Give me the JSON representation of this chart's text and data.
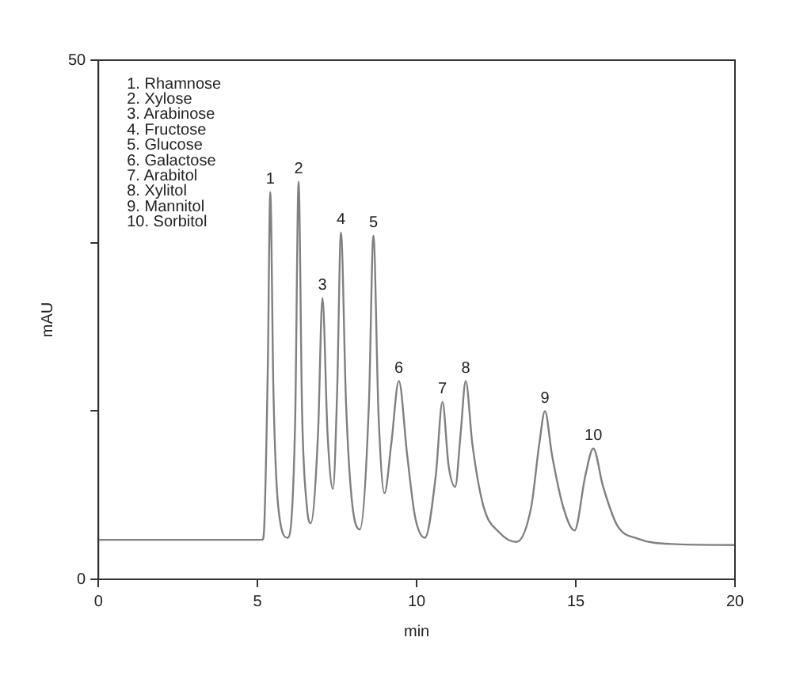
{
  "chart_data": {
    "type": "line",
    "xlabel": "min",
    "ylabel": "mAU",
    "xlim": [
      0,
      20
    ],
    "xticks": [
      0,
      5,
      10,
      15,
      20
    ],
    "ylim": [
      0,
      50
    ],
    "yticks": [
      0,
      {
        "value": 16.2,
        "label": null
      },
      {
        "value": 32.4,
        "label": null
      },
      50
    ],
    "grid": false,
    "legend": false,
    "marker": "none",
    "line_style": "solid",
    "series": [
      {
        "color": "#808080",
        "x": [
          0,
          5.15,
          5.2,
          5.32,
          5.4,
          5.5,
          5.65,
          5.95,
          6.18,
          6.29,
          6.4,
          6.55,
          6.67,
          6.9,
          7.04,
          7.2,
          7.37,
          7.5,
          7.62,
          7.78,
          7.95,
          8.21,
          8.5,
          8.64,
          8.8,
          8.99,
          9.2,
          9.44,
          9.7,
          9.95,
          10.26,
          10.6,
          10.81,
          11.0,
          11.21,
          11.38,
          11.54,
          11.75,
          12.1,
          12.6,
          13.13,
          13.6,
          13.85,
          14.03,
          14.25,
          14.6,
          14.96,
          15.3,
          15.55,
          15.85,
          16.3,
          16.96,
          18,
          20
        ],
        "values": [
          3.8,
          3.8,
          4.5,
          20,
          37.3,
          18,
          7,
          4.0,
          15,
          38.3,
          16,
          7,
          5.4,
          14,
          27.1,
          14,
          8.7,
          18,
          33.4,
          17,
          8,
          4.8,
          17,
          33.1,
          16,
          8.3,
          13,
          19.1,
          12,
          6,
          4.0,
          10,
          17.1,
          11,
          8.9,
          14,
          19.1,
          13,
          7,
          4.5,
          3.6,
          7,
          13,
          16.2,
          12,
          7,
          4.7,
          10,
          12.6,
          9,
          5.2,
          3.9,
          3.4,
          3.3
        ]
      }
    ],
    "annotations": [
      {
        "text": "1",
        "x": 5.4,
        "y": 37.3
      },
      {
        "text": "2",
        "x": 6.29,
        "y": 38.3
      },
      {
        "text": "3",
        "x": 7.04,
        "y": 27.1
      },
      {
        "text": "4",
        "x": 7.62,
        "y": 33.4
      },
      {
        "text": "5",
        "x": 8.64,
        "y": 33.1
      },
      {
        "text": "6",
        "x": 9.44,
        "y": 19.1
      },
      {
        "text": "7",
        "x": 10.81,
        "y": 17.1
      },
      {
        "text": "8",
        "x": 11.54,
        "y": 19.1
      },
      {
        "text": "9",
        "x": 14.03,
        "y": 16.2
      },
      {
        "text": "10",
        "x": 15.55,
        "y": 12.6
      },
      "1. Rhamnose",
      "2. Xylose",
      "3. Arabinose",
      "4. Fructose",
      "5. Glucose",
      "6. Galactose",
      "7. Arabitol",
      "8. Xylitol",
      "9. Mannitol",
      "10. Sorbitol"
    ]
  }
}
